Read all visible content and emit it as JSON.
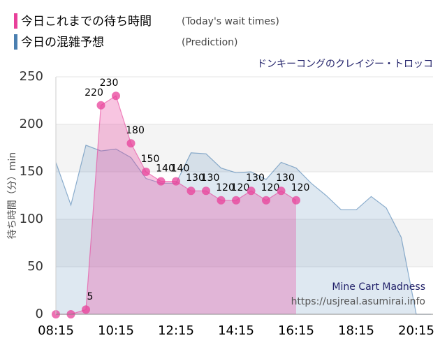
{
  "chart_data": {
    "type": "line",
    "title": "ドンキーコングのクレイジー・トロッコ",
    "y_label": "待ち時間（分）min",
    "watermark": [
      "Mine Cart Madness",
      "https://usjreal.asumirai.info"
    ],
    "categories": [
      "08:15",
      null,
      null,
      null,
      "10:15",
      null,
      null,
      null,
      "12:15",
      null,
      null,
      null,
      "14:15",
      null,
      null,
      null,
      "16:15",
      null,
      null,
      null,
      "18:15",
      null,
      null,
      null,
      "20:15",
      null
    ],
    "ylim": [
      0,
      250
    ],
    "yticks": [
      0,
      50,
      100,
      150,
      200,
      250
    ],
    "grid": true,
    "series": [
      {
        "name": "今日の混雑予想",
        "note": "(Prediction)",
        "color": "#4a7fb0",
        "values": [
          160,
          115,
          178,
          172,
          174,
          165,
          143,
          138,
          138,
          170,
          169,
          154,
          149,
          150,
          142,
          160,
          154,
          138,
          125,
          110,
          110,
          124,
          112,
          81,
          0,
          0
        ]
      },
      {
        "name": "今日これまでの待ち時間",
        "note": "(Today's wait times)",
        "color": "#e8409a",
        "values": [
          0,
          0,
          5,
          220,
          230,
          180,
          150,
          140,
          140,
          130,
          130,
          120,
          120,
          130,
          120,
          130,
          120,
          null,
          null,
          null,
          null,
          null,
          null,
          null,
          null,
          null
        ],
        "value_labels": [
          null,
          null,
          "5",
          "220",
          "230",
          "180",
          "150",
          "140",
          "140",
          "130",
          "130",
          "120",
          "120",
          "130",
          "120",
          "130",
          "120",
          null,
          null,
          null,
          null,
          null,
          null,
          null,
          null,
          null
        ]
      }
    ]
  }
}
